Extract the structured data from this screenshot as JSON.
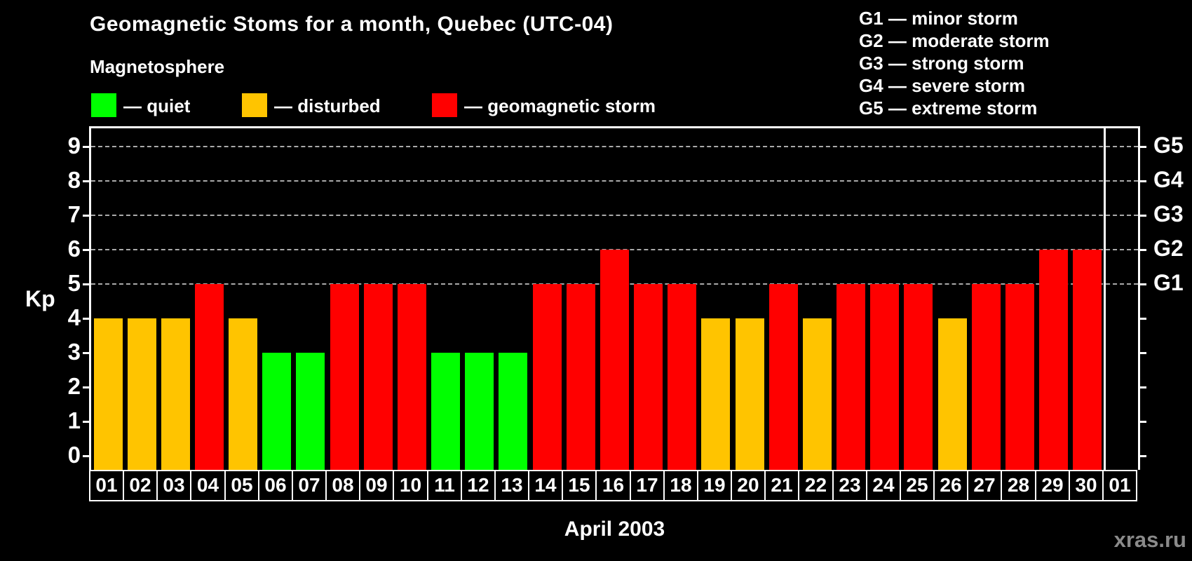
{
  "header": {
    "title": "Geomagnetic Stoms for a month, Quebec (UTC-04)",
    "subtitle": "Magnetosphere"
  },
  "legend": {
    "items": [
      {
        "name": "quiet",
        "label": "— quiet",
        "color": "#00FF00"
      },
      {
        "name": "disturbed",
        "label": "— disturbed",
        "color": "#FFC400"
      },
      {
        "name": "storm",
        "label": "— geomagnetic storm",
        "color": "#FF0000"
      }
    ]
  },
  "storm_scale": {
    "items": [
      "G1 — minor storm",
      "G2 — moderate storm",
      "G3 — strong storm",
      "G4 — severe storm",
      "G5 — extreme storm"
    ]
  },
  "chart_data": {
    "type": "bar",
    "title": "Geomagnetic Stoms for a month, Quebec (UTC-04)",
    "xlabel": "April 2003",
    "ylabel": "Kp",
    "ylim": [
      0,
      9
    ],
    "y_ticks": [
      0,
      1,
      2,
      3,
      4,
      5,
      6,
      7,
      8,
      9
    ],
    "gridlines_at": [
      5,
      6,
      7,
      8,
      9
    ],
    "grid_style": "dashed",
    "legend_position": "top",
    "right_axis_labels": [
      {
        "kp": 5,
        "label": "G1"
      },
      {
        "kp": 6,
        "label": "G2"
      },
      {
        "kp": 7,
        "label": "G3"
      },
      {
        "kp": 8,
        "label": "G4"
      },
      {
        "kp": 9,
        "label": "G5"
      }
    ],
    "colors": {
      "quiet": "#00FF00",
      "disturbed": "#FFC400",
      "storm": "#FF0000"
    },
    "days": [
      {
        "day": "01",
        "kp": 4,
        "level": "disturbed"
      },
      {
        "day": "02",
        "kp": 4,
        "level": "disturbed"
      },
      {
        "day": "03",
        "kp": 4,
        "level": "disturbed"
      },
      {
        "day": "04",
        "kp": 5,
        "level": "storm"
      },
      {
        "day": "05",
        "kp": 4,
        "level": "disturbed"
      },
      {
        "day": "06",
        "kp": 3,
        "level": "quiet"
      },
      {
        "day": "07",
        "kp": 3,
        "level": "quiet"
      },
      {
        "day": "08",
        "kp": 5,
        "level": "storm"
      },
      {
        "day": "09",
        "kp": 5,
        "level": "storm"
      },
      {
        "day": "10",
        "kp": 5,
        "level": "storm"
      },
      {
        "day": "11",
        "kp": 3,
        "level": "quiet"
      },
      {
        "day": "12",
        "kp": 3,
        "level": "quiet"
      },
      {
        "day": "13",
        "kp": 3,
        "level": "quiet"
      },
      {
        "day": "14",
        "kp": 5,
        "level": "storm"
      },
      {
        "day": "15",
        "kp": 5,
        "level": "storm"
      },
      {
        "day": "16",
        "kp": 6,
        "level": "storm"
      },
      {
        "day": "17",
        "kp": 5,
        "level": "storm"
      },
      {
        "day": "18",
        "kp": 5,
        "level": "storm"
      },
      {
        "day": "19",
        "kp": 4,
        "level": "disturbed"
      },
      {
        "day": "20",
        "kp": 4,
        "level": "disturbed"
      },
      {
        "day": "21",
        "kp": 5,
        "level": "storm"
      },
      {
        "day": "22",
        "kp": 4,
        "level": "disturbed"
      },
      {
        "day": "23",
        "kp": 5,
        "level": "storm"
      },
      {
        "day": "24",
        "kp": 5,
        "level": "storm"
      },
      {
        "day": "25",
        "kp": 5,
        "level": "storm"
      },
      {
        "day": "26",
        "kp": 4,
        "level": "disturbed"
      },
      {
        "day": "27",
        "kp": 5,
        "level": "storm"
      },
      {
        "day": "28",
        "kp": 5,
        "level": "storm"
      },
      {
        "day": "29",
        "kp": 6,
        "level": "storm"
      },
      {
        "day": "30",
        "kp": 6,
        "level": "storm"
      },
      {
        "day": "01",
        "kp": null,
        "level": "none"
      }
    ]
  },
  "footer": {
    "watermark": "xras.ru"
  }
}
